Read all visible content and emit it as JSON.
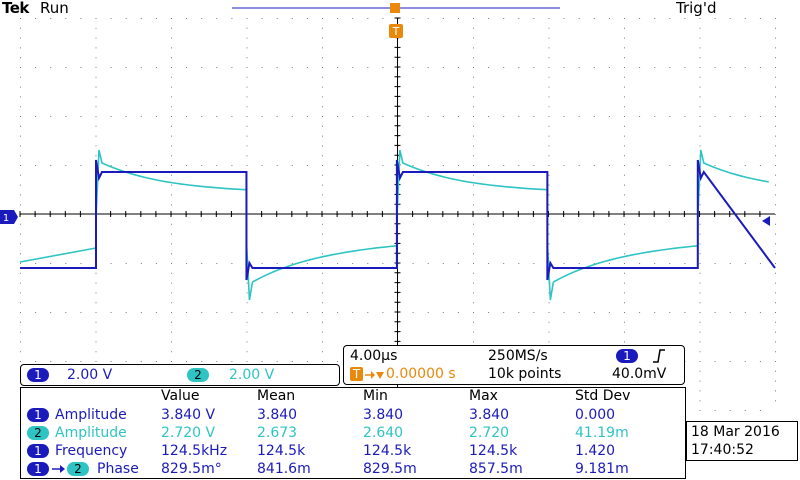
{
  "header": {
    "brand": "Tek",
    "acq_state": "Run",
    "trigger_state": "Trig'd"
  },
  "colors": {
    "ch1": "#1b1bbd",
    "ch2": "#2ec4c4",
    "trigger": "#e8890c",
    "grid": "#7a7a7a"
  },
  "markers": {
    "trigger_top": "T",
    "ch1_ground": "1"
  },
  "channels": [
    {
      "num": "1",
      "scale": "2.00 V"
    },
    {
      "num": "2",
      "scale": "2.00 V"
    }
  ],
  "timebase": {
    "horizontal_scale": "4.00µs",
    "sample_rate": "250MS/s",
    "trigger_position": "0.00000 s",
    "trigger_icon": "T",
    "record_length": "10k points",
    "trigger_channel": "1",
    "trigger_level": "40.0mV",
    "trigger_slope_icon": "rising-edge-icon"
  },
  "measurements": {
    "headers": [
      "Value",
      "Mean",
      "Min",
      "Max",
      "Std Dev"
    ],
    "rows": [
      {
        "source": "1",
        "name": "Amplitude",
        "values": [
          "3.840 V",
          "3.840",
          "3.840",
          "3.840",
          "0.000"
        ]
      },
      {
        "source": "2",
        "name": "Amplitude",
        "values": [
          "2.720 V",
          "2.673",
          "2.640",
          "2.720",
          "41.19m"
        ]
      },
      {
        "source": "1",
        "name": "Frequency",
        "values": [
          "124.5kHz",
          "124.5k",
          "124.5k",
          "124.5k",
          "1.420"
        ]
      },
      {
        "source": "1",
        "target": "2",
        "name": "Phase",
        "values": [
          "829.5m°",
          "841.6m",
          "829.5m",
          "857.5m",
          "9.181m"
        ]
      }
    ]
  },
  "datetime": {
    "date": "18 Mar 2016",
    "time": "17:40:52"
  }
}
